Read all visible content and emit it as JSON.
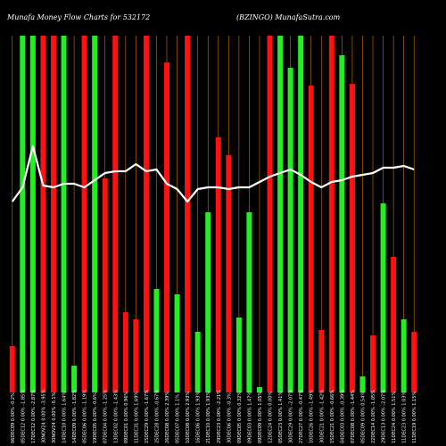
{
  "header": {
    "title": "Munafa Money Flow Charts for 532172",
    "subtitle": "(BZINGO) MunafaSutra.com"
  },
  "chart_data": {
    "type": "bar",
    "title": "Munafa Money Flow Charts for 532172",
    "subtitle": "(BZINGO) MunafaSutra.com",
    "ylim": [
      0,
      100
    ],
    "grid": true,
    "colors": {
      "up": "#22ee22",
      "down": "#ff1111",
      "line": "#ffffff",
      "grid": "#c87800",
      "background": "#000000"
    },
    "bars": [
      {
        "label": "06DEC09 0.00% -0.2%",
        "value": 13,
        "dir": "down"
      },
      {
        "label": "05DEC12 0.00% -1.85%",
        "value": 100,
        "dir": "up"
      },
      {
        "label": "17DEC12 0.00% -2.87%",
        "value": 100,
        "dir": "up"
      },
      {
        "label": "30NOV24 0.00% -3.95%",
        "value": 100,
        "dir": "down"
      },
      {
        "label": "30NOV24 0.00% -0.1%",
        "value": 100,
        "dir": "down"
      },
      {
        "label": "14DEC10 0.00% 1.64%",
        "value": 100,
        "dir": "up"
      },
      {
        "label": "14DEC09 0.00% -1.82%",
        "value": 7.5,
        "dir": "up"
      },
      {
        "label": "05DEC06 0.00% -1.19%",
        "value": 100,
        "dir": "down"
      },
      {
        "label": "19DEC05 0.00% -0.6%",
        "value": 100,
        "dir": "up"
      },
      {
        "label": "07DEC04 0.00% -1.25%",
        "value": 60,
        "dir": "down"
      },
      {
        "label": "13DEC02 0.00% -1.43%",
        "value": 100,
        "dir": "down"
      },
      {
        "label": "09DEC01 0.00% 0.96%",
        "value": 22.5,
        "dir": "down"
      },
      {
        "label": "11DEC31 0.00% 1.69%",
        "value": 20.5,
        "dir": "down"
      },
      {
        "label": "15DEC29 0.00% -1.67%",
        "value": 100,
        "dir": "down"
      },
      {
        "label": "25DEC28 0.00% -0.67%",
        "value": 29,
        "dir": "up"
      },
      {
        "label": "26DEC08 0.00% 2.39%",
        "value": 92.5,
        "dir": "down"
      },
      {
        "label": "05DEC07 0.00% 1.1%",
        "value": 27.5,
        "dir": "up"
      },
      {
        "label": "10DEC08 0.00% 2.93%",
        "value": 100,
        "dir": "down"
      },
      {
        "label": "16DEC06 0.00% 1.93%",
        "value": 17,
        "dir": "up"
      },
      {
        "label": "21DEC10 0.00% 1.93%",
        "value": 50.5,
        "dir": "up"
      },
      {
        "label": "29DEC23 0.00% -2.21%",
        "value": 71.5,
        "dir": "down"
      },
      {
        "label": "30DEC06 0.00% -0.3%",
        "value": 66.5,
        "dir": "down"
      },
      {
        "label": "09DEC05 0.00% 0.32%",
        "value": 21,
        "dir": "up"
      },
      {
        "label": "09DEC03 0.00% 1.47%",
        "value": 50.5,
        "dir": "up"
      },
      {
        "label": "09DEC09 0.00% 1.05%",
        "value": 1.5,
        "dir": "up"
      },
      {
        "label": "12DEC24 0.00% 0.00%",
        "value": 100,
        "dir": "down"
      },
      {
        "label": "05DEC23 0.00% 1.41%",
        "value": 100,
        "dir": "up"
      },
      {
        "label": "30DEC29 0.00% -2.07%",
        "value": 91,
        "dir": "up"
      },
      {
        "label": "27DEC27 0.00% -0.47%",
        "value": 100,
        "dir": "up"
      },
      {
        "label": "10DEC26 0.00% -1.49%",
        "value": 86,
        "dir": "down"
      },
      {
        "label": "30DEC21 0.00% -1.42%",
        "value": 17.5,
        "dir": "down"
      },
      {
        "label": "15DEC21 0.00% -0.66%",
        "value": 100,
        "dir": "down"
      },
      {
        "label": "04DEC03 0.00% -0.39%",
        "value": 94.5,
        "dir": "up"
      },
      {
        "label": "07DEC08 0.00% -1.44%",
        "value": 86.5,
        "dir": "down"
      },
      {
        "label": "05DEC09 0.00% 0.54%",
        "value": 4.5,
        "dir": "up"
      },
      {
        "label": "22DEC14 0.00% -1.05%",
        "value": 16,
        "dir": "down"
      },
      {
        "label": "29DEC13 0.00% -2.07%",
        "value": 53,
        "dir": "up"
      },
      {
        "label": "11DEC24 0.00% 1.51%",
        "value": 38,
        "dir": "down"
      },
      {
        "label": "11DEC23 0.00% 1.03%",
        "value": 20.5,
        "dir": "up"
      },
      {
        "label": "11DEC19 0.00% 1.15%",
        "value": 17,
        "dir": "down"
      }
    ],
    "line": [
      53.5,
      57.5,
      69,
      58,
      57.5,
      58.5,
      58.5,
      57.5,
      59.5,
      61.5,
      62,
      62,
      64,
      62,
      62.5,
      58.5,
      57,
      53.5,
      57,
      57.5,
      57.5,
      57,
      57.5,
      57.5,
      59,
      60.5,
      61.5,
      62.5,
      61,
      59,
      57.5,
      59,
      59.5,
      60.5,
      61,
      61.5,
      63,
      63,
      63.5,
      62.5
    ]
  }
}
